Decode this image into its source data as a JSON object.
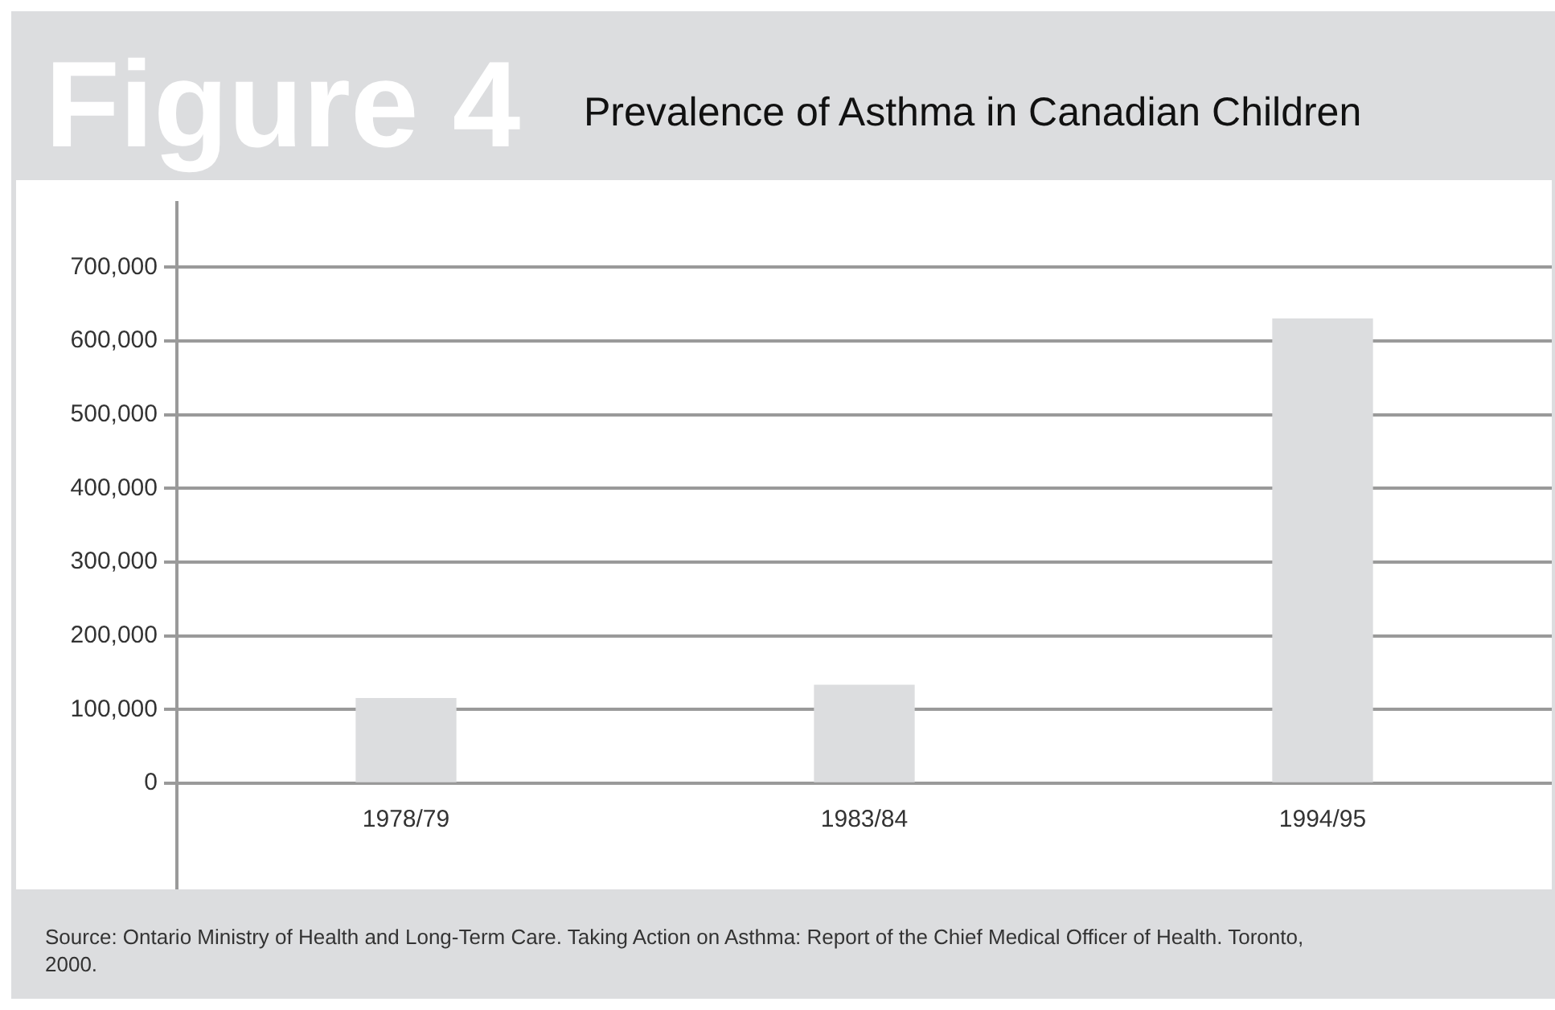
{
  "chart_data": {
    "type": "bar",
    "title": "Figure 4",
    "subtitle": "Prevalence of Asthma in Canadian Children",
    "categories": [
      "1978/79",
      "1983/84",
      "1994/95"
    ],
    "values": [
      115000,
      133000,
      630000
    ],
    "color": "#dcdddf",
    "ylim": [
      0,
      790000
    ],
    "yticks": [
      {
        "value": 0,
        "label": "0"
      },
      {
        "value": 100000,
        "label": "100,000"
      },
      {
        "value": 200000,
        "label": "200,000"
      },
      {
        "value": 300000,
        "label": "300,000"
      },
      {
        "value": 400000,
        "label": "400,000"
      },
      {
        "value": 500000,
        "label": "500,000"
      },
      {
        "value": 600000,
        "label": "600,000"
      },
      {
        "value": 700000,
        "label": "700,000"
      }
    ],
    "grid": "y",
    "annotations": [
      "Source: Ontario Ministry of Health and Long-Term Care. Taking Action on Asthma: Report of the Chief Medical Officer of Health. Toronto, 2000."
    ]
  }
}
